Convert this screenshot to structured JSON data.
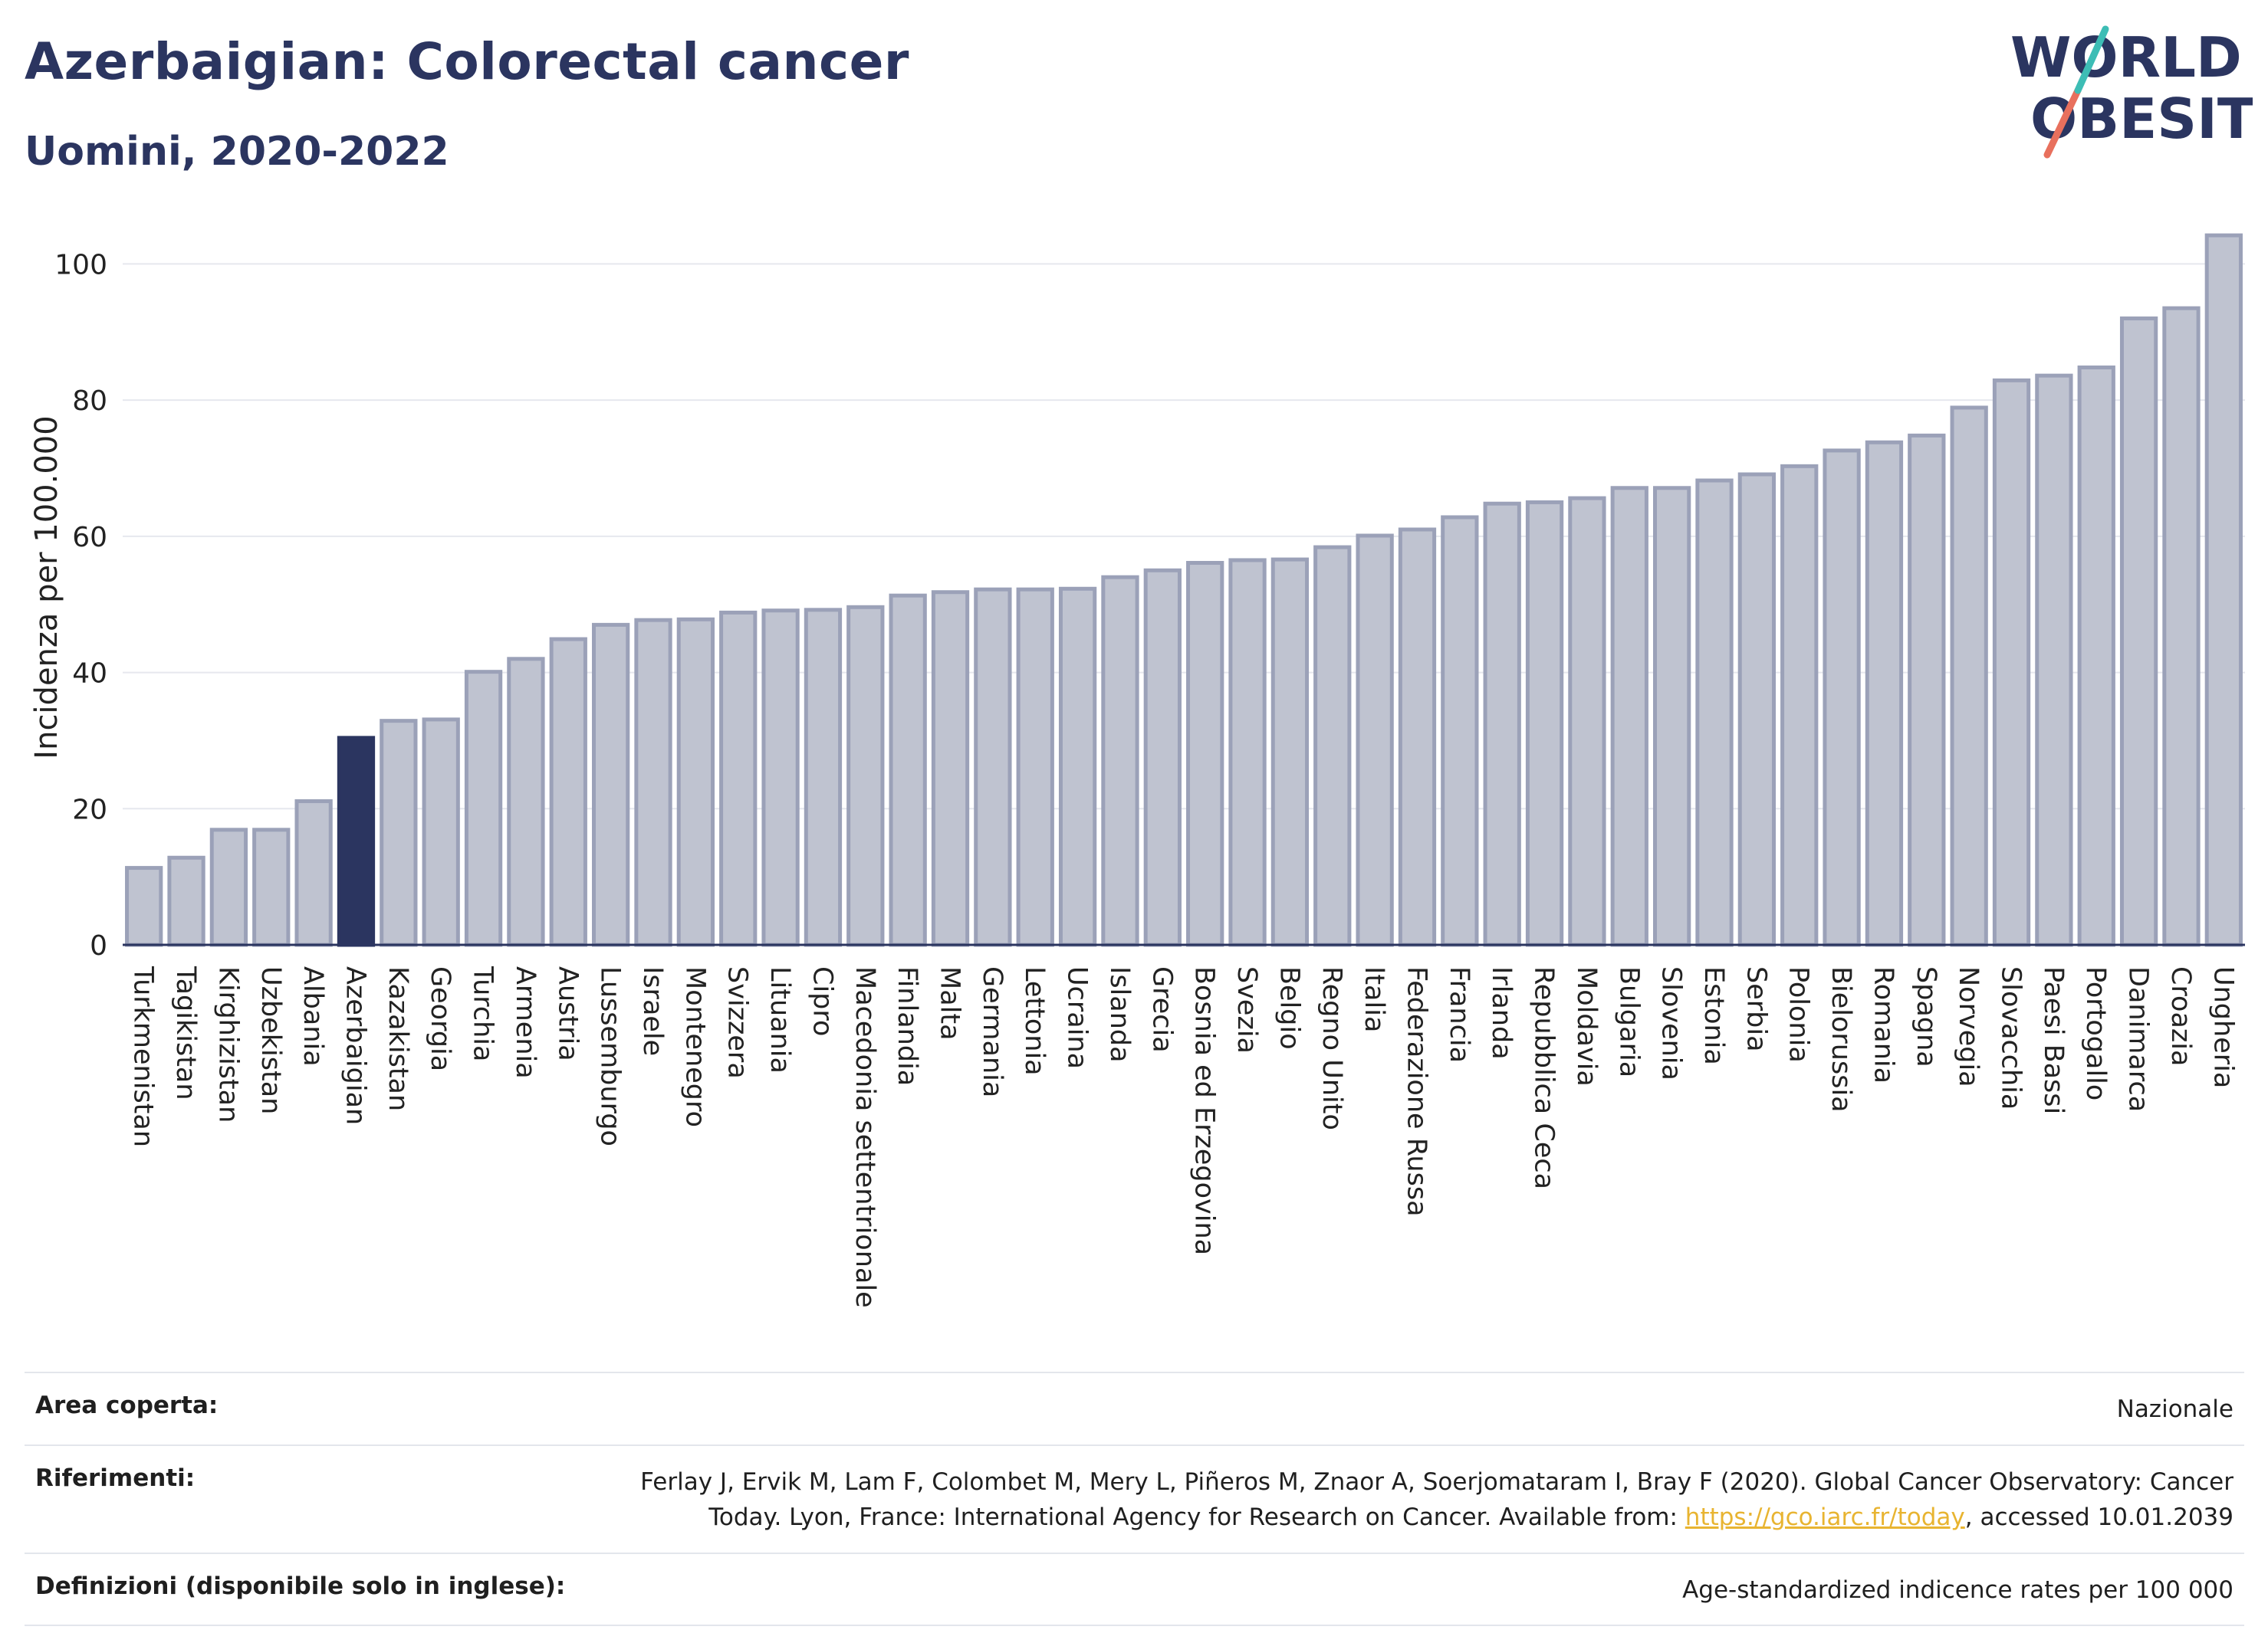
{
  "header": {
    "title": "Azerbaigian: Colorectal cancer",
    "subtitle": "Uomini, 2020-2022"
  },
  "logo": {
    "line1": "WORLD",
    "line2": "OBESITY",
    "colors": {
      "text": "#2b3560",
      "slash_top": "#3dbdb5",
      "slash_bottom": "#e8705d"
    }
  },
  "chart_data": {
    "type": "bar",
    "title": "",
    "xlabel": "",
    "ylabel": "Incidenza per 100.000",
    "ylim": [
      0,
      105
    ],
    "yticks": [
      0,
      20,
      40,
      60,
      80,
      100
    ],
    "grid": true,
    "highlight": "Azerbaigian",
    "colors": {
      "bar": "#bfc3d0",
      "bar_edge": "#9ba1b8",
      "highlight": "#2b3560"
    },
    "categories": [
      "Turkmenistan",
      "Tagikistan",
      "Kirghizistan",
      "Uzbekistan",
      "Albania",
      "Azerbaigian",
      "Kazakistan",
      "Georgia",
      "Turchia",
      "Armenia",
      "Austria",
      "Lussemburgo",
      "Israele",
      "Montenegro",
      "Svizzera",
      "Lituania",
      "Cipro",
      "Macedonia settentrionale",
      "Finlandia",
      "Malta",
      "Germania",
      "Lettonia",
      "Ucraina",
      "Islanda",
      "Grecia",
      "Bosnia ed Erzegovina",
      "Svezia",
      "Belgio",
      "Regno Unito",
      "Italia",
      "Federazione Russa",
      "Francia",
      "Irlanda",
      "Repubblica Ceca",
      "Moldavia",
      "Bulgaria",
      "Slovenia",
      "Estonia",
      "Serbia",
      "Polonia",
      "Bielorussia",
      "Romania",
      "Spagna",
      "Norvegia",
      "Slovacchia",
      "Paesi Bassi",
      "Portogallo",
      "Danimarca",
      "Croazia",
      "Ungheria"
    ],
    "values": [
      11.3,
      12.8,
      16.9,
      16.9,
      21.1,
      30.4,
      32.9,
      33.1,
      40.1,
      42.0,
      44.9,
      47.0,
      47.7,
      47.8,
      48.8,
      49.1,
      49.2,
      49.6,
      51.3,
      51.8,
      52.2,
      52.2,
      52.3,
      54.0,
      55.0,
      56.1,
      56.5,
      56.6,
      58.4,
      60.1,
      61.0,
      62.8,
      64.8,
      65.0,
      65.6,
      67.1,
      67.1,
      68.2,
      69.1,
      70.3,
      72.6,
      73.8,
      74.8,
      78.9,
      82.9,
      83.6,
      84.8,
      92.0,
      93.5,
      104.2
    ]
  },
  "meta": {
    "area_label": "Area coperta:",
    "area_value": "Nazionale",
    "ref_label": "Riferimenti:",
    "ref_text_1": "Ferlay J, Ervik M, Lam F, Colombet M, Mery L, Piñeros M, Znaor A, Soerjomataram I, Bray F (2020). Global Cancer Observatory: Cancer Today. Lyon, France: International Agency for Research on Cancer. Available from: ",
    "ref_link": "https://gco.iarc.fr/today",
    "ref_text_2": ", accessed 10.01.2039",
    "def_label": "Definizioni (disponibile solo in inglese):",
    "def_value": "Age-standardized indicence rates per 100 000"
  }
}
